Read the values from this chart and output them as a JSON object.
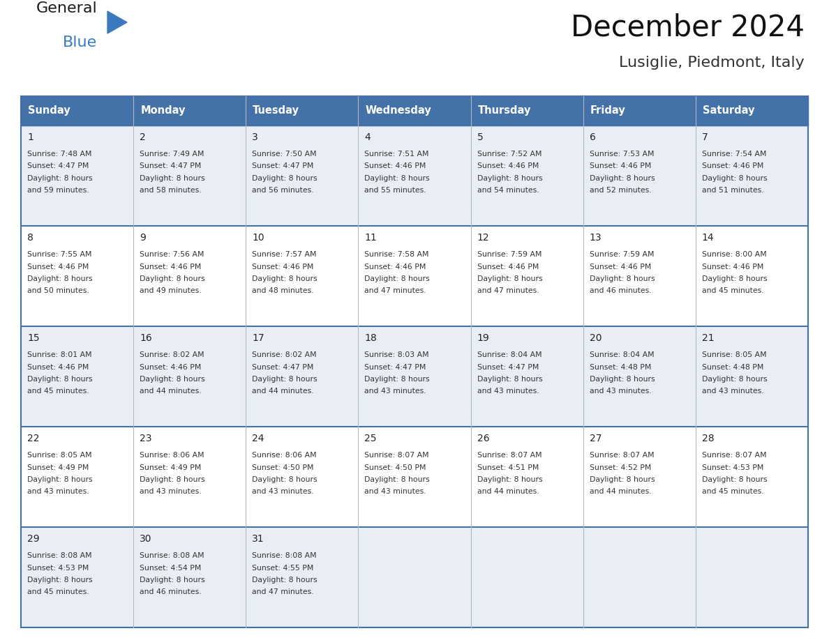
{
  "title": "December 2024",
  "subtitle": "Lusiglie, Piedmont, Italy",
  "header_bg": "#4472a8",
  "header_text_color": "#ffffff",
  "row_bg_light": "#e8eef4",
  "row_bg_white": "#ffffff",
  "border_color": "#4472a8",
  "cell_text_color": "#333333",
  "day_num_color": "#222222",
  "day_headers": [
    "Sunday",
    "Monday",
    "Tuesday",
    "Wednesday",
    "Thursday",
    "Friday",
    "Saturday"
  ],
  "days": [
    {
      "day": 1,
      "col": 0,
      "row": 0,
      "sunrise": "7:48 AM",
      "sunset": "4:47 PM",
      "daylight_l1": "Daylight: 8 hours",
      "daylight_l2": "and 59 minutes."
    },
    {
      "day": 2,
      "col": 1,
      "row": 0,
      "sunrise": "7:49 AM",
      "sunset": "4:47 PM",
      "daylight_l1": "Daylight: 8 hours",
      "daylight_l2": "and 58 minutes."
    },
    {
      "day": 3,
      "col": 2,
      "row": 0,
      "sunrise": "7:50 AM",
      "sunset": "4:47 PM",
      "daylight_l1": "Daylight: 8 hours",
      "daylight_l2": "and 56 minutes."
    },
    {
      "day": 4,
      "col": 3,
      "row": 0,
      "sunrise": "7:51 AM",
      "sunset": "4:46 PM",
      "daylight_l1": "Daylight: 8 hours",
      "daylight_l2": "and 55 minutes."
    },
    {
      "day": 5,
      "col": 4,
      "row": 0,
      "sunrise": "7:52 AM",
      "sunset": "4:46 PM",
      "daylight_l1": "Daylight: 8 hours",
      "daylight_l2": "and 54 minutes."
    },
    {
      "day": 6,
      "col": 5,
      "row": 0,
      "sunrise": "7:53 AM",
      "sunset": "4:46 PM",
      "daylight_l1": "Daylight: 8 hours",
      "daylight_l2": "and 52 minutes."
    },
    {
      "day": 7,
      "col": 6,
      "row": 0,
      "sunrise": "7:54 AM",
      "sunset": "4:46 PM",
      "daylight_l1": "Daylight: 8 hours",
      "daylight_l2": "and 51 minutes."
    },
    {
      "day": 8,
      "col": 0,
      "row": 1,
      "sunrise": "7:55 AM",
      "sunset": "4:46 PM",
      "daylight_l1": "Daylight: 8 hours",
      "daylight_l2": "and 50 minutes."
    },
    {
      "day": 9,
      "col": 1,
      "row": 1,
      "sunrise": "7:56 AM",
      "sunset": "4:46 PM",
      "daylight_l1": "Daylight: 8 hours",
      "daylight_l2": "and 49 minutes."
    },
    {
      "day": 10,
      "col": 2,
      "row": 1,
      "sunrise": "7:57 AM",
      "sunset": "4:46 PM",
      "daylight_l1": "Daylight: 8 hours",
      "daylight_l2": "and 48 minutes."
    },
    {
      "day": 11,
      "col": 3,
      "row": 1,
      "sunrise": "7:58 AM",
      "sunset": "4:46 PM",
      "daylight_l1": "Daylight: 8 hours",
      "daylight_l2": "and 47 minutes."
    },
    {
      "day": 12,
      "col": 4,
      "row": 1,
      "sunrise": "7:59 AM",
      "sunset": "4:46 PM",
      "daylight_l1": "Daylight: 8 hours",
      "daylight_l2": "and 47 minutes."
    },
    {
      "day": 13,
      "col": 5,
      "row": 1,
      "sunrise": "7:59 AM",
      "sunset": "4:46 PM",
      "daylight_l1": "Daylight: 8 hours",
      "daylight_l2": "and 46 minutes."
    },
    {
      "day": 14,
      "col": 6,
      "row": 1,
      "sunrise": "8:00 AM",
      "sunset": "4:46 PM",
      "daylight_l1": "Daylight: 8 hours",
      "daylight_l2": "and 45 minutes."
    },
    {
      "day": 15,
      "col": 0,
      "row": 2,
      "sunrise": "8:01 AM",
      "sunset": "4:46 PM",
      "daylight_l1": "Daylight: 8 hours",
      "daylight_l2": "and 45 minutes."
    },
    {
      "day": 16,
      "col": 1,
      "row": 2,
      "sunrise": "8:02 AM",
      "sunset": "4:46 PM",
      "daylight_l1": "Daylight: 8 hours",
      "daylight_l2": "and 44 minutes."
    },
    {
      "day": 17,
      "col": 2,
      "row": 2,
      "sunrise": "8:02 AM",
      "sunset": "4:47 PM",
      "daylight_l1": "Daylight: 8 hours",
      "daylight_l2": "and 44 minutes."
    },
    {
      "day": 18,
      "col": 3,
      "row": 2,
      "sunrise": "8:03 AM",
      "sunset": "4:47 PM",
      "daylight_l1": "Daylight: 8 hours",
      "daylight_l2": "and 43 minutes."
    },
    {
      "day": 19,
      "col": 4,
      "row": 2,
      "sunrise": "8:04 AM",
      "sunset": "4:47 PM",
      "daylight_l1": "Daylight: 8 hours",
      "daylight_l2": "and 43 minutes."
    },
    {
      "day": 20,
      "col": 5,
      "row": 2,
      "sunrise": "8:04 AM",
      "sunset": "4:48 PM",
      "daylight_l1": "Daylight: 8 hours",
      "daylight_l2": "and 43 minutes."
    },
    {
      "day": 21,
      "col": 6,
      "row": 2,
      "sunrise": "8:05 AM",
      "sunset": "4:48 PM",
      "daylight_l1": "Daylight: 8 hours",
      "daylight_l2": "and 43 minutes."
    },
    {
      "day": 22,
      "col": 0,
      "row": 3,
      "sunrise": "8:05 AM",
      "sunset": "4:49 PM",
      "daylight_l1": "Daylight: 8 hours",
      "daylight_l2": "and 43 minutes."
    },
    {
      "day": 23,
      "col": 1,
      "row": 3,
      "sunrise": "8:06 AM",
      "sunset": "4:49 PM",
      "daylight_l1": "Daylight: 8 hours",
      "daylight_l2": "and 43 minutes."
    },
    {
      "day": 24,
      "col": 2,
      "row": 3,
      "sunrise": "8:06 AM",
      "sunset": "4:50 PM",
      "daylight_l1": "Daylight: 8 hours",
      "daylight_l2": "and 43 minutes."
    },
    {
      "day": 25,
      "col": 3,
      "row": 3,
      "sunrise": "8:07 AM",
      "sunset": "4:50 PM",
      "daylight_l1": "Daylight: 8 hours",
      "daylight_l2": "and 43 minutes."
    },
    {
      "day": 26,
      "col": 4,
      "row": 3,
      "sunrise": "8:07 AM",
      "sunset": "4:51 PM",
      "daylight_l1": "Daylight: 8 hours",
      "daylight_l2": "and 44 minutes."
    },
    {
      "day": 27,
      "col": 5,
      "row": 3,
      "sunrise": "8:07 AM",
      "sunset": "4:52 PM",
      "daylight_l1": "Daylight: 8 hours",
      "daylight_l2": "and 44 minutes."
    },
    {
      "day": 28,
      "col": 6,
      "row": 3,
      "sunrise": "8:07 AM",
      "sunset": "4:53 PM",
      "daylight_l1": "Daylight: 8 hours",
      "daylight_l2": "and 45 minutes."
    },
    {
      "day": 29,
      "col": 0,
      "row": 4,
      "sunrise": "8:08 AM",
      "sunset": "4:53 PM",
      "daylight_l1": "Daylight: 8 hours",
      "daylight_l2": "and 45 minutes."
    },
    {
      "day": 30,
      "col": 1,
      "row": 4,
      "sunrise": "8:08 AM",
      "sunset": "4:54 PM",
      "daylight_l1": "Daylight: 8 hours",
      "daylight_l2": "and 46 minutes."
    },
    {
      "day": 31,
      "col": 2,
      "row": 4,
      "sunrise": "8:08 AM",
      "sunset": "4:55 PM",
      "daylight_l1": "Daylight: 8 hours",
      "daylight_l2": "and 47 minutes."
    }
  ],
  "logo_text1": "General",
  "logo_text2": "Blue",
  "logo_text1_color": "#1a1a1a",
  "logo_text2_color": "#3a7abf",
  "logo_triangle_color": "#3a7abf",
  "fig_width": 11.88,
  "fig_height": 9.18
}
